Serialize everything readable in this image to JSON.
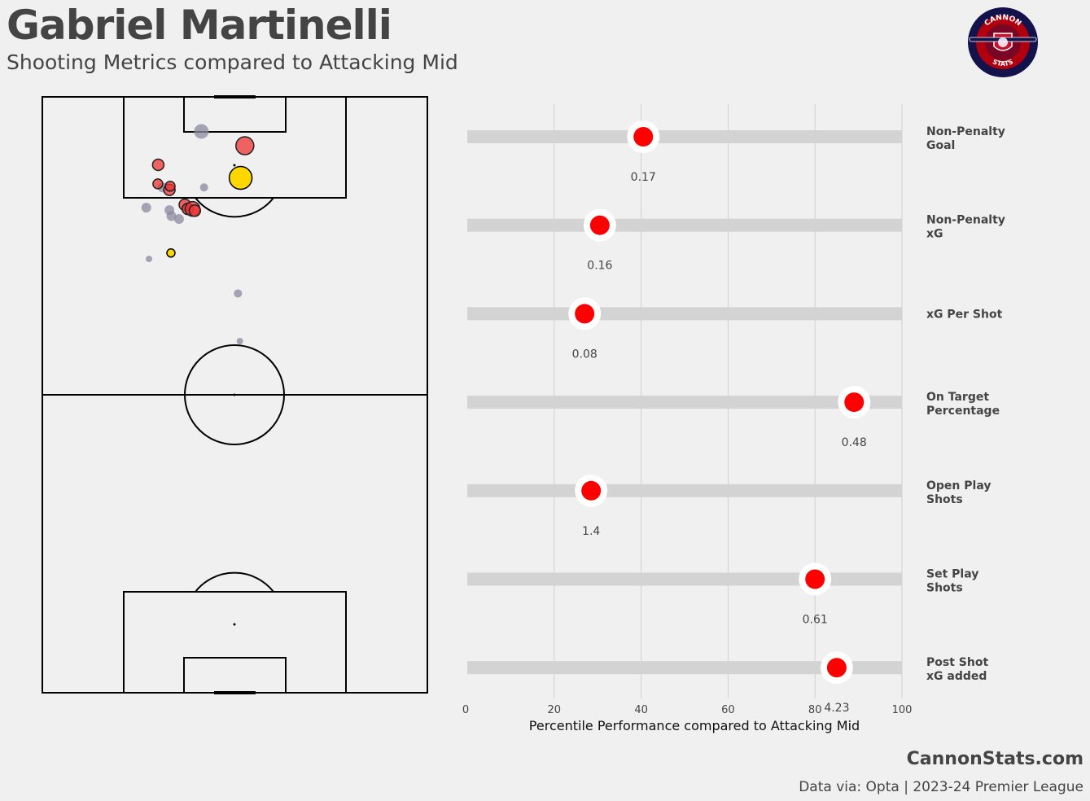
{
  "header": {
    "title": "Gabriel Martinelli",
    "subtitle": "Shooting Metrics compared to Attacking Mid"
  },
  "logo": {
    "top_text": "CANNON",
    "bottom_text": "STATS",
    "icon": "cannon-shield-icon"
  },
  "footer": {
    "brand": "CannonStats.com",
    "source": "Data via: Opta | 2023-24 Premier League"
  },
  "colors": {
    "background": "#f0f0f0",
    "goal": "#ffd700",
    "on_target": "#ee3333",
    "other_shot": "#8a8aa0",
    "percentile_dot": "#ff0000",
    "track": "#d3d3d3",
    "grid": "#d0d0d0"
  },
  "chart_data": [
    {
      "type": "scatter",
      "shots": [
        {
          "x": 41.3,
          "y": 94.2,
          "size": 9,
          "kind": "other"
        },
        {
          "x": 30.1,
          "y": 88.6,
          "size": 7,
          "kind": "on_target"
        },
        {
          "x": 30.0,
          "y": 85.4,
          "size": 6,
          "kind": "on_target"
        },
        {
          "x": 31.2,
          "y": 84.8,
          "size": 6,
          "kind": "other"
        },
        {
          "x": 33.0,
          "y": 84.4,
          "size": 7,
          "kind": "on_target"
        },
        {
          "x": 33.2,
          "y": 85.0,
          "size": 6,
          "kind": "on_target"
        },
        {
          "x": 42.0,
          "y": 84.8,
          "size": 5,
          "kind": "other"
        },
        {
          "x": 27.0,
          "y": 81.4,
          "size": 6,
          "kind": "other"
        },
        {
          "x": 33.0,
          "y": 81.0,
          "size": 6,
          "kind": "other"
        },
        {
          "x": 33.5,
          "y": 80.0,
          "size": 6,
          "kind": "other"
        },
        {
          "x": 35.5,
          "y": 79.5,
          "size": 6,
          "kind": "other"
        },
        {
          "x": 37.0,
          "y": 81.9,
          "size": 7,
          "kind": "on_target"
        },
        {
          "x": 37.8,
          "y": 81.2,
          "size": 7,
          "kind": "on_target"
        },
        {
          "x": 39.0,
          "y": 81.2,
          "size": 9,
          "kind": "on_target"
        },
        {
          "x": 39.6,
          "y": 80.9,
          "size": 7,
          "kind": "on_target"
        },
        {
          "x": 52.6,
          "y": 91.8,
          "size": 11,
          "kind": "on_target"
        },
        {
          "x": 51.5,
          "y": 86.4,
          "size": 14,
          "kind": "goal"
        },
        {
          "x": 33.4,
          "y": 73.8,
          "size": 5,
          "kind": "goal"
        },
        {
          "x": 27.7,
          "y": 72.8,
          "size": 4,
          "kind": "other"
        },
        {
          "x": 50.8,
          "y": 67.0,
          "size": 5,
          "kind": "other"
        },
        {
          "x": 51.3,
          "y": 59.0,
          "size": 4,
          "kind": "other"
        }
      ]
    },
    {
      "type": "scatter",
      "xlabel": "Percentile Performance compared to Attacking Mid",
      "xlim": [
        0,
        100
      ],
      "xticks": [
        "0",
        "20",
        "40",
        "60",
        "80",
        "100"
      ],
      "metrics": [
        {
          "label_line1": "Non-Penalty",
          "label_line2": "Goal",
          "percentile": 40.5,
          "value": "0.17"
        },
        {
          "label_line1": "Non-Penalty",
          "label_line2": "xG",
          "percentile": 30.5,
          "value": "0.16"
        },
        {
          "label_line1": "xG Per Shot",
          "label_line2": "",
          "percentile": 27.0,
          "value": "0.08"
        },
        {
          "label_line1": "On Target",
          "label_line2": "Percentage",
          "percentile": 89.0,
          "value": "0.48"
        },
        {
          "label_line1": "Open Play",
          "label_line2": "Shots",
          "percentile": 28.5,
          "value": "1.4"
        },
        {
          "label_line1": "Set Play",
          "label_line2": "Shots",
          "percentile": 80.0,
          "value": "0.61"
        },
        {
          "label_line1": "Post Shot",
          "label_line2": "xG added",
          "percentile": 85.0,
          "value": "4.23"
        }
      ]
    }
  ]
}
